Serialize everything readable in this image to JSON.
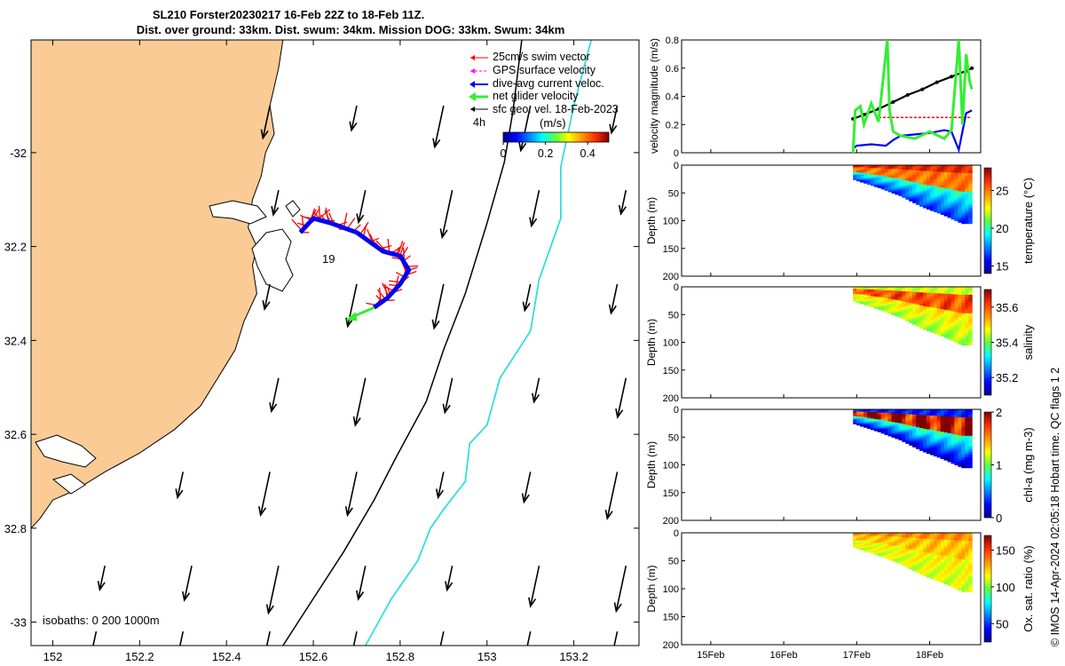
{
  "title_line1": "SL210 Forster20230217 16-Feb 22Z to 18-Feb 11Z.",
  "title_line2": "Dist. over ground: 33km. Dist. swum: 34km. Mission DOG: 33km. Swum: 34km",
  "credit": "© IMOS 14-Apr-2024 02:05:18 Hobart time. QC flags 1  2",
  "colors": {
    "land": "#fbcb95",
    "swim": "#ff0000",
    "gps": "#ff00ff",
    "dac": "#0000ee",
    "net": "#33ee33",
    "geo": "#000000",
    "isobath_200": "#000000",
    "isobath_1000": "#33dddd"
  },
  "chart_data": [
    {
      "type": "map",
      "name": "track-map",
      "xlim": [
        151.95,
        153.35
      ],
      "ylim": [
        -33.05,
        -31.76
      ],
      "xticks": [
        152,
        152.2,
        152.4,
        152.6,
        152.8,
        153,
        153.2
      ],
      "xtick_labels": [
        "152",
        "152.2",
        "152.4",
        "152.6",
        "152.8",
        "153",
        "153.2"
      ],
      "yticks": [
        -32,
        -32.2,
        -32.4,
        -32.6,
        -32.8,
        -33
      ],
      "ytick_labels": [
        "-32",
        "32.2",
        "32.4",
        "32.6",
        "32.8",
        "-33"
      ],
      "legend": {
        "position": "top-right",
        "entries": [
          "25cm/s swim vector",
          "GPS surface velocity",
          "dive-avg current veloc.",
          "net glider velocity",
          "sfc geo. vel. 18-Feb-2023"
        ],
        "extra": "4h"
      },
      "colorbar": {
        "label": "(m/s)",
        "ticks": [
          0,
          0.2,
          0.4
        ],
        "tick_labels": [
          "0",
          "0.2",
          "0.4"
        ],
        "lim": [
          0,
          0.5
        ]
      },
      "isobath_label": "isobaths: 0   200  1000m",
      "track_label": "19",
      "track": [
        [
          152.57,
          -32.17
        ],
        [
          152.6,
          -32.14
        ],
        [
          152.64,
          -32.15
        ],
        [
          152.7,
          -32.17
        ],
        [
          152.76,
          -32.21
        ],
        [
          152.8,
          -32.22
        ],
        [
          152.82,
          -32.25
        ],
        [
          152.8,
          -32.28
        ],
        [
          152.77,
          -32.31
        ],
        [
          152.74,
          -32.33
        ]
      ],
      "isobath_200": [
        [
          152.53,
          -33.05
        ],
        [
          152.6,
          -32.95
        ],
        [
          152.67,
          -32.85
        ],
        [
          152.74,
          -32.74
        ],
        [
          152.79,
          -32.65
        ],
        [
          152.86,
          -32.53
        ],
        [
          152.9,
          -32.42
        ],
        [
          152.95,
          -32.3
        ],
        [
          153.0,
          -32.15
        ],
        [
          153.04,
          -32.02
        ],
        [
          153.06,
          -31.91
        ],
        [
          153.08,
          -31.76
        ]
      ],
      "isobath_1000": [
        [
          152.72,
          -33.05
        ],
        [
          152.78,
          -32.95
        ],
        [
          152.84,
          -32.87
        ],
        [
          152.87,
          -32.8
        ],
        [
          152.9,
          -32.76
        ],
        [
          152.95,
          -32.7
        ],
        [
          152.96,
          -32.62
        ],
        [
          153.0,
          -32.58
        ],
        [
          153.03,
          -32.48
        ],
        [
          153.1,
          -32.38
        ],
        [
          153.12,
          -32.27
        ],
        [
          153.17,
          -32.14
        ],
        [
          153.17,
          -32.03
        ],
        [
          153.2,
          -31.9
        ],
        [
          153.24,
          -31.76
        ]
      ],
      "geo_vectors": {
        "lons": [
          152.1,
          152.3,
          152.5,
          152.7,
          152.9,
          153.1,
          153.3
        ],
        "lats": [
          -31.9,
          -32.08,
          -32.28,
          -32.48,
          -32.68,
          -32.88,
          -33.02
        ],
        "u": -0.06,
        "v": -0.28
      },
      "coast": [
        [
          152.53,
          -31.76
        ],
        [
          152.52,
          -31.82
        ],
        [
          152.5,
          -31.9
        ],
        [
          152.51,
          -31.96
        ],
        [
          152.49,
          -32.0
        ],
        [
          152.48,
          -32.05
        ],
        [
          152.46,
          -32.1
        ],
        [
          152.45,
          -32.16
        ],
        [
          152.47,
          -32.2
        ],
        [
          152.46,
          -32.24
        ],
        [
          152.47,
          -32.3
        ],
        [
          152.44,
          -32.36
        ],
        [
          152.42,
          -32.42
        ],
        [
          152.38,
          -32.48
        ],
        [
          152.34,
          -32.54
        ],
        [
          152.28,
          -32.59
        ],
        [
          152.2,
          -32.64
        ],
        [
          152.12,
          -32.68
        ],
        [
          152.05,
          -32.72
        ],
        [
          152.0,
          -32.74
        ],
        [
          151.97,
          -32.78
        ],
        [
          151.95,
          -32.8
        ]
      ]
    },
    {
      "type": "line",
      "name": "velocity-magnitude",
      "ylabel": "velocity magnitude (m/s)",
      "ylim": [
        0,
        0.8
      ],
      "yticks": [
        0,
        0.2,
        0.4,
        0.6,
        0.8
      ],
      "series": [
        {
          "color": "#000000",
          "x": [
            16.95,
            17.1,
            17.3,
            17.5,
            17.7,
            17.9,
            18.1,
            18.3,
            18.5,
            18.58
          ],
          "y": [
            0.24,
            0.27,
            0.31,
            0.36,
            0.41,
            0.45,
            0.5,
            0.54,
            0.58,
            0.6
          ]
        },
        {
          "color": "#ff0000",
          "x": [
            17.3,
            18.58
          ],
          "y": [
            0.25,
            0.25
          ]
        },
        {
          "color": "#0000ee",
          "x": [
            16.95,
            17.0,
            17.2,
            17.4,
            17.5,
            17.6,
            17.8,
            18.0,
            18.2,
            18.3,
            18.4,
            18.5,
            18.58
          ],
          "y": [
            0.03,
            0.05,
            0.06,
            0.05,
            0.09,
            0.12,
            0.13,
            0.14,
            0.16,
            0.15,
            0.02,
            0.28,
            0.3
          ]
        },
        {
          "color": "#33ee33",
          "x": [
            16.95,
            16.98,
            17.05,
            17.1,
            17.2,
            17.3,
            17.42,
            17.45,
            17.5,
            17.6,
            17.8,
            18.0,
            18.2,
            18.3,
            18.4,
            18.45,
            18.5,
            18.55,
            18.58
          ],
          "y": [
            0.0,
            0.3,
            0.33,
            0.2,
            0.35,
            0.22,
            0.8,
            0.3,
            0.15,
            0.12,
            0.1,
            0.15,
            0.1,
            0.16,
            0.8,
            0.2,
            0.7,
            0.5,
            0.45
          ]
        }
      ]
    },
    {
      "type": "heatmap",
      "name": "temperature",
      "clabel": "temperature (°C)",
      "clim": [
        14,
        28
      ],
      "cticks": [
        15,
        20,
        25
      ],
      "ylim": [
        0,
        200
      ],
      "yticks": [
        0,
        50,
        100,
        150,
        200
      ],
      "surface": 26.5,
      "mixed": 25,
      "deep": 16
    },
    {
      "type": "heatmap",
      "name": "salinity",
      "clabel": "salinity",
      "clim": [
        35.1,
        35.7
      ],
      "cticks": [
        35.2,
        35.4,
        35.6
      ],
      "ylim": [
        0,
        200
      ],
      "yticks": [
        0,
        50,
        100,
        150,
        200
      ],
      "surface": 35.45,
      "mixed": 35.6,
      "deep": 35.42
    },
    {
      "type": "heatmap",
      "name": "chl-a",
      "clabel": "chl-a (mg m-3)",
      "clim": [
        0,
        2
      ],
      "cticks": [
        0,
        1,
        2
      ],
      "ylim": [
        0,
        200
      ],
      "yticks": [
        0,
        50,
        100,
        150,
        200
      ],
      "surface": 0.3,
      "mixed": 1.9,
      "deep": 0.1
    },
    {
      "type": "heatmap",
      "name": "oxygen-saturation",
      "clabel": "Ox. sat. ratio (%)",
      "clim": [
        25,
        170
      ],
      "cticks": [
        50,
        100,
        150
      ],
      "ylim": [
        0,
        200
      ],
      "yticks": [
        0,
        50,
        100,
        150,
        200
      ],
      "surface": 135,
      "mixed": 125,
      "deep": 110
    },
    {
      "type": "axis",
      "name": "time-axis",
      "xlim": [
        14.6,
        18.7
      ],
      "xticks": [
        15,
        16,
        17,
        18
      ],
      "xtick_labels": [
        "15Feb",
        "16Feb",
        "17Feb",
        "18Feb"
      ],
      "depth_axis_label": "Depth (m)",
      "section_xlim": [
        16.95,
        18.58
      ],
      "bottom_depth": [
        [
          16.95,
          25
        ],
        [
          17.3,
          40
        ],
        [
          17.6,
          55
        ],
        [
          17.9,
          75
        ],
        [
          18.2,
          90
        ],
        [
          18.45,
          105
        ],
        [
          18.58,
          105
        ]
      ]
    }
  ]
}
